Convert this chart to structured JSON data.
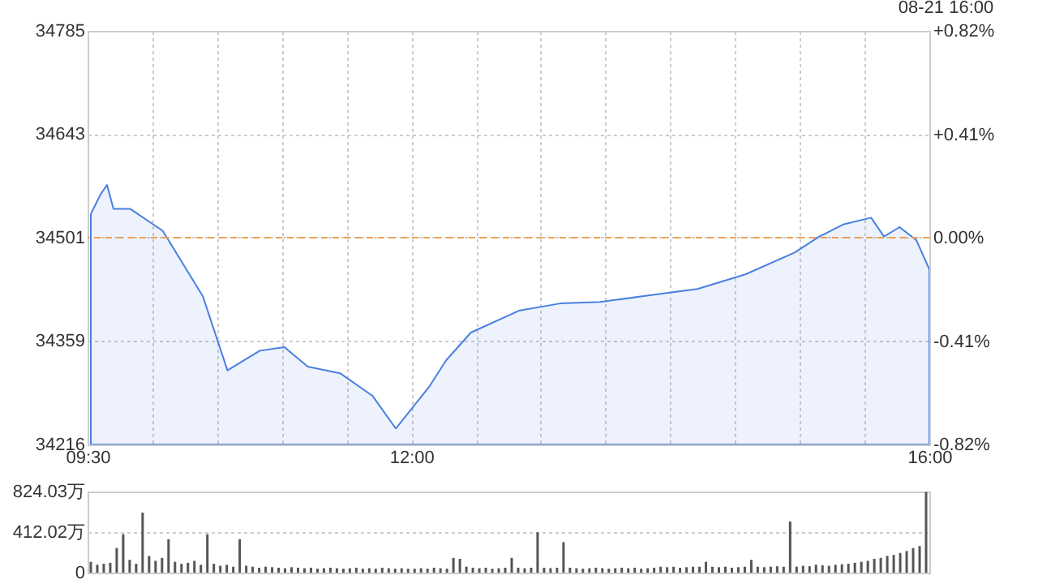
{
  "chart_data": [
    {
      "type": "area",
      "annotations": [
        "08-21 16:00"
      ],
      "x": [
        9.525,
        9.6,
        9.65,
        9.7,
        9.83,
        10.08,
        10.39,
        10.58,
        10.83,
        11.02,
        11.2,
        11.45,
        11.7,
        11.88,
        12.02,
        12.14,
        12.27,
        12.46,
        12.83,
        13.15,
        13.46,
        13.83,
        14.21,
        14.58,
        14.96,
        15.15,
        15.34,
        15.55,
        15.65,
        15.77,
        15.9,
        16.0
      ],
      "series": [
        {
          "color": "#4a7fe0",
          "values": [
            34533,
            34560,
            34573,
            34540,
            34540,
            34510,
            34420,
            34318,
            34345,
            34350,
            34323,
            34314,
            34283,
            34238,
            34269,
            34296,
            34332,
            34370,
            34400,
            34410,
            34412,
            34421,
            34430,
            34450,
            34480,
            34502,
            34519,
            34528,
            34502,
            34515,
            34497,
            34457
          ]
        }
      ],
      "xlim": [
        9.5,
        16
      ],
      "xticks": [
        {
          "value": 9.5,
          "label": "09:30"
        },
        {
          "value": 10,
          "label": null
        },
        {
          "value": 10.5,
          "label": null
        },
        {
          "value": 11,
          "label": null
        },
        {
          "value": 11.5,
          "label": null
        },
        {
          "value": 12,
          "label": "12:00"
        },
        {
          "value": 12.5,
          "label": null
        },
        {
          "value": 13,
          "label": null
        },
        {
          "value": 13.5,
          "label": null
        },
        {
          "value": 14,
          "label": null
        },
        {
          "value": 14.5,
          "label": null
        },
        {
          "value": 15,
          "label": null
        },
        {
          "value": 15.5,
          "label": null
        },
        {
          "value": 16,
          "label": "16:00"
        }
      ],
      "ylim": [
        34216,
        34785
      ],
      "yticks": [
        34216,
        34359,
        34501,
        34643,
        34785
      ],
      "y2lim": [
        -0.82,
        0.82
      ],
      "y2ticks": [
        {
          "value": -0.82,
          "label": "-0.82%"
        },
        {
          "value": -0.41,
          "label": "-0.41%"
        },
        {
          "value": 0,
          "label": "0.00%"
        },
        {
          "value": 0.41,
          "label": "+0.41%"
        },
        {
          "value": 0.82,
          "label": "+0.82%"
        }
      ],
      "ref_lines": [
        {
          "axis": "y2",
          "value": 0,
          "color": "#f0a050",
          "line_style": "dashed"
        }
      ],
      "grid": true
    },
    {
      "type": "bar",
      "color": "#555555",
      "categories": [
        null,
        null,
        null,
        null,
        null,
        null,
        null,
        null,
        null,
        null,
        null,
        null,
        null,
        null,
        null,
        null,
        null,
        null,
        null,
        null,
        null,
        null,
        null,
        null,
        null,
        null,
        null,
        null,
        null,
        null,
        null,
        null,
        null,
        null,
        null,
        null,
        null,
        null,
        null,
        null,
        null,
        null,
        null,
        null,
        null,
        null,
        null,
        null,
        null,
        null,
        null,
        null,
        null,
        null,
        null,
        null,
        null,
        null,
        null,
        null,
        null,
        null,
        null,
        null,
        null,
        null,
        null,
        null,
        null,
        null,
        null,
        null,
        null,
        null,
        null,
        null,
        null,
        null,
        null,
        null,
        null,
        null,
        null,
        null,
        null,
        null,
        null,
        null,
        null,
        null,
        null,
        null,
        null,
        null,
        null,
        null,
        null,
        null,
        null,
        null,
        null,
        null,
        null,
        null,
        null,
        null,
        null,
        null,
        null,
        null,
        null,
        null,
        null,
        null,
        null,
        null,
        null,
        null,
        null,
        null,
        null,
        null,
        null,
        null,
        null,
        null,
        null,
        null,
        null,
        null
      ],
      "values": [
        110,
        80,
        90,
        100,
        250,
        390,
        130,
        90,
        610,
        170,
        120,
        150,
        340,
        110,
        90,
        100,
        120,
        80,
        390,
        90,
        70,
        80,
        60,
        340,
        70,
        60,
        50,
        60,
        55,
        50,
        45,
        55,
        50,
        45,
        50,
        40,
        45,
        50,
        45,
        40,
        45,
        50,
        40,
        45,
        40,
        50,
        45,
        40,
        45,
        40,
        40,
        45,
        40,
        50,
        45,
        40,
        150,
        140,
        60,
        50,
        45,
        50,
        40,
        45,
        50,
        150,
        50,
        45,
        50,
        410,
        50,
        45,
        50,
        310,
        50,
        45,
        40,
        45,
        50,
        45,
        40,
        45,
        50,
        45,
        50,
        40,
        45,
        50,
        60,
        55,
        60,
        50,
        55,
        60,
        60,
        110,
        60,
        55,
        60,
        50,
        55,
        60,
        130,
        60,
        55,
        60,
        65,
        60,
        520,
        60,
        70,
        65,
        80,
        75,
        70,
        80,
        85,
        90,
        100,
        110,
        120,
        140,
        150,
        170,
        180,
        200,
        220,
        250,
        270,
        820
      ],
      "ylim": [
        0,
        824.03
      ],
      "yticks": [
        0,
        {
          "value": 412.02,
          "label": "412.02万"
        },
        {
          "value": 824.03,
          "label": "824.03万"
        }
      ],
      "grid": "y",
      "tick_labels": "y"
    }
  ]
}
